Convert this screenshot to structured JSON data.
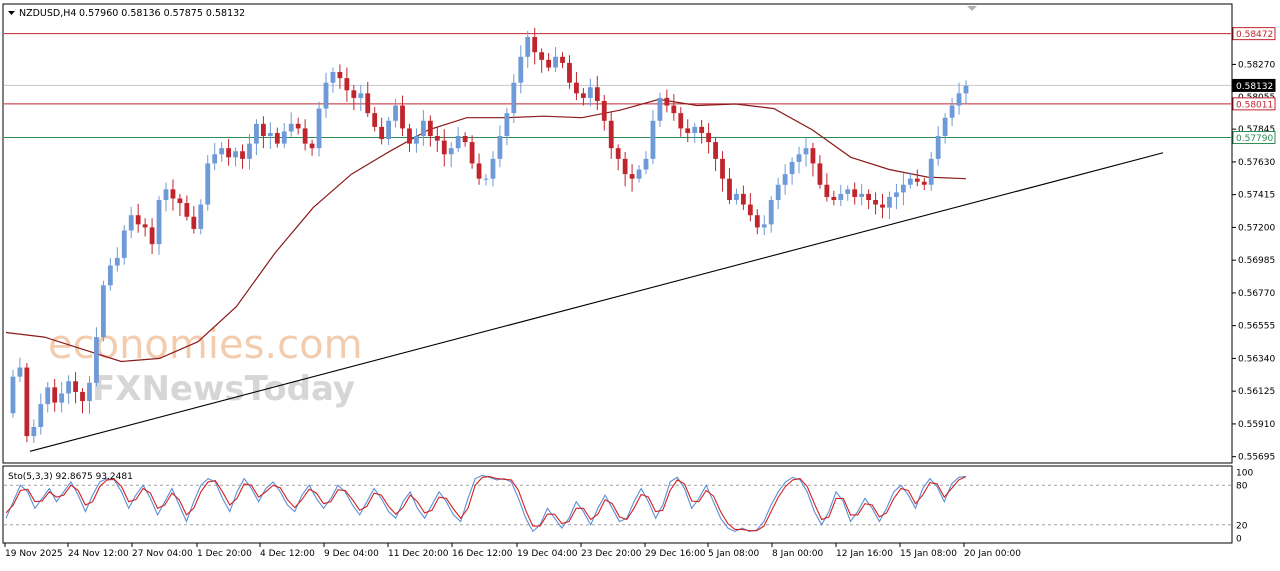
{
  "header": {
    "symbol": "NZDUSD,H4",
    "ohlc": "0.57960 0.58136 0.57875 0.58132"
  },
  "watermark": {
    "line1": "economies.com",
    "line2": "FXNewsToday"
  },
  "colors": {
    "bull": "#6f9ad8",
    "bear": "#c0242c",
    "ma": "#8b1a1a",
    "resistance": "#c0242c",
    "support": "#2e8b57",
    "trendline": "#000000",
    "stoch_main": "#5b8fd6",
    "stoch_signal": "#d42020",
    "price_tag_red": "#c0242c",
    "price_tag_green": "#2e8b57",
    "price_tag_current": "#000000"
  },
  "chart_data": [
    {
      "type": "candlestick",
      "title": "NZDUSD,H4",
      "ylim": [
        0.5566,
        0.5866
      ],
      "y_ticks": [
        "0.58270",
        "0.57845",
        "0.57630",
        "0.57415",
        "0.57200",
        "0.56985",
        "0.56770",
        "0.56555",
        "0.56340",
        "0.56125",
        "0.55910",
        "0.55695"
      ],
      "x_ticks": [
        "19 Nov 2025",
        "24 Nov 12:00",
        "27 Nov 04:00",
        "1 Dec 20:00",
        "4 Dec 12:00",
        "9 Dec 04:00",
        "11 Dec 20:00",
        "16 Dec 12:00",
        "19 Dec 04:00",
        "23 Dec 20:00",
        "29 Dec 16:00",
        "5 Jan 08:00",
        "8 Jan 00:00",
        "12 Jan 16:00",
        "15 Jan 08:00",
        "20 Jan 00:00"
      ],
      "price_tags": [
        {
          "label": "0.58472",
          "value": 0.58472,
          "kind": "resistance"
        },
        {
          "label": "0.58132",
          "value": 0.58132,
          "kind": "current"
        },
        {
          "label": "0.58055",
          "value": 0.58055,
          "kind": "bid"
        },
        {
          "label": "0.58011",
          "value": 0.58011,
          "kind": "resistance"
        },
        {
          "label": "0.57790",
          "value": 0.5779,
          "kind": "support"
        }
      ],
      "horizontal_levels": [
        {
          "value": 0.58472,
          "kind": "resistance"
        },
        {
          "value": 0.58011,
          "kind": "resistance"
        },
        {
          "value": 0.5779,
          "kind": "support"
        }
      ],
      "price_path": [
        0.5598,
        0.5622,
        0.5628,
        0.5583,
        0.5589,
        0.5604,
        0.5615,
        0.5605,
        0.5611,
        0.5619,
        0.5612,
        0.5606,
        0.5618,
        0.5648,
        0.5682,
        0.5695,
        0.57,
        0.5718,
        0.5728,
        0.5722,
        0.572,
        0.5709,
        0.5738,
        0.5745,
        0.5739,
        0.5736,
        0.5727,
        0.5719,
        0.5735,
        0.5762,
        0.5768,
        0.5772,
        0.5766,
        0.577,
        0.5765,
        0.5775,
        0.5788,
        0.578,
        0.5782,
        0.5775,
        0.5783,
        0.5788,
        0.5785,
        0.5775,
        0.5772,
        0.5798,
        0.5815,
        0.5822,
        0.5818,
        0.581,
        0.5805,
        0.5808,
        0.5795,
        0.5786,
        0.5778,
        0.579,
        0.58,
        0.5785,
        0.5775,
        0.578,
        0.579,
        0.578,
        0.5777,
        0.5768,
        0.5772,
        0.578,
        0.5776,
        0.5762,
        0.5752,
        0.5752,
        0.5765,
        0.578,
        0.5795,
        0.5815,
        0.5832,
        0.5845,
        0.5835,
        0.583,
        0.5825,
        0.5832,
        0.5828,
        0.5815,
        0.5808,
        0.5805,
        0.5812,
        0.5803,
        0.579,
        0.5772,
        0.5765,
        0.5755,
        0.5752,
        0.5758,
        0.5765,
        0.579,
        0.5805,
        0.58,
        0.5795,
        0.5785,
        0.5782,
        0.5786,
        0.5782,
        0.5776,
        0.5765,
        0.5752,
        0.5738,
        0.5742,
        0.5735,
        0.5728,
        0.572,
        0.5722,
        0.5738,
        0.5748,
        0.5755,
        0.5763,
        0.5768,
        0.5772,
        0.5762,
        0.5748,
        0.574,
        0.5738,
        0.5742,
        0.5745,
        0.574,
        0.5742,
        0.5738,
        0.5735,
        0.5733,
        0.574,
        0.5743,
        0.5748,
        0.5752,
        0.575,
        0.5748,
        0.5765,
        0.578,
        0.5792,
        0.58,
        0.5808,
        0.5813
      ],
      "moving_average": [
        [
          0,
          0.5651
        ],
        [
          0.04,
          0.5648
        ],
        [
          0.08,
          0.564
        ],
        [
          0.12,
          0.5632
        ],
        [
          0.16,
          0.5634
        ],
        [
          0.2,
          0.5645
        ],
        [
          0.24,
          0.5668
        ],
        [
          0.28,
          0.5703
        ],
        [
          0.32,
          0.5733
        ],
        [
          0.36,
          0.5755
        ],
        [
          0.4,
          0.577
        ],
        [
          0.44,
          0.5784
        ],
        [
          0.48,
          0.5792
        ],
        [
          0.52,
          0.5792
        ],
        [
          0.56,
          0.5793
        ],
        [
          0.6,
          0.5792
        ],
        [
          0.64,
          0.5797
        ],
        [
          0.68,
          0.5804
        ],
        [
          0.72,
          0.58
        ],
        [
          0.76,
          0.5801
        ],
        [
          0.8,
          0.5798
        ],
        [
          0.84,
          0.5784
        ],
        [
          0.88,
          0.5766
        ],
        [
          0.92,
          0.5758
        ],
        [
          0.96,
          0.5753
        ],
        [
          1,
          0.5752
        ]
      ],
      "trendline": [
        [
          0.5573,
          0.0
        ],
        [
          0.5769,
          1.0
        ]
      ]
    },
    {
      "type": "line",
      "title": "Sto(5,3,3) 92.8675 93.2481",
      "ylim": [
        0,
        100
      ],
      "y_ticks": [
        "100",
        "80",
        "20",
        "0"
      ],
      "levels": [
        80,
        20
      ],
      "series": [
        {
          "name": "main",
          "values": [
            30,
            55,
            80,
            70,
            45,
            60,
            75,
            55,
            70,
            85,
            65,
            40,
            65,
            85,
            90,
            88,
            70,
            45,
            65,
            80,
            60,
            35,
            55,
            75,
            50,
            25,
            55,
            80,
            90,
            85,
            60,
            40,
            70,
            90,
            75,
            55,
            75,
            85,
            70,
            50,
            40,
            65,
            80,
            60,
            45,
            60,
            80,
            70,
            50,
            35,
            55,
            75,
            60,
            40,
            30,
            55,
            70,
            45,
            30,
            50,
            70,
            55,
            35,
            25,
            60,
            90,
            95,
            92,
            88,
            90,
            85,
            60,
            30,
            10,
            20,
            45,
            30,
            15,
            30,
            55,
            40,
            20,
            45,
            65,
            45,
            25,
            30,
            55,
            75,
            55,
            30,
            50,
            85,
            92,
            75,
            45,
            60,
            80,
            55,
            30,
            15,
            10,
            15,
            10,
            12,
            25,
            50,
            70,
            85,
            92,
            88,
            70,
            40,
            20,
            40,
            70,
            55,
            25,
            40,
            60,
            45,
            25,
            45,
            70,
            80,
            65,
            45,
            75,
            90,
            78,
            55,
            82,
            92,
            93
          ]
        },
        {
          "name": "signal",
          "values": [
            38,
            50,
            72,
            74,
            55,
            56,
            70,
            62,
            65,
            80,
            72,
            50,
            55,
            78,
            88,
            89,
            78,
            55,
            58,
            75,
            68,
            45,
            50,
            68,
            58,
            35,
            45,
            70,
            85,
            87,
            70,
            50,
            60,
            82,
            80,
            62,
            70,
            80,
            76,
            58,
            46,
            58,
            74,
            68,
            52,
            55,
            73,
            72,
            58,
            42,
            48,
            68,
            65,
            48,
            36,
            46,
            65,
            55,
            38,
            42,
            62,
            60,
            44,
            30,
            45,
            80,
            92,
            93,
            90,
            89,
            88,
            72,
            42,
            18,
            18,
            36,
            36,
            22,
            25,
            45,
            45,
            28,
            36,
            58,
            52,
            32,
            28,
            45,
            66,
            62,
            40,
            42,
            72,
            88,
            82,
            56,
            55,
            72,
            64,
            40,
            22,
            13,
            13,
            11,
            11,
            18,
            40,
            62,
            78,
            88,
            90,
            78,
            52,
            28,
            32,
            60,
            60,
            35,
            35,
            52,
            50,
            32,
            38,
            60,
            75,
            72,
            52,
            65,
            84,
            82,
            62,
            75,
            88,
            93
          ]
        }
      ]
    }
  ]
}
